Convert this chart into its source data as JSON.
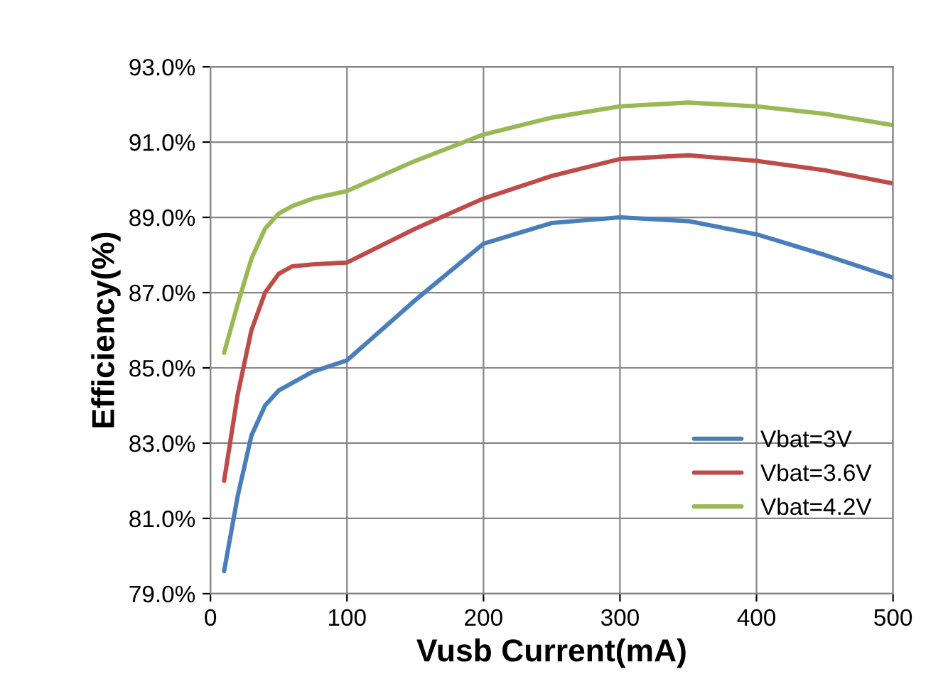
{
  "chart_data": {
    "type": "line",
    "xlabel": "Vusb Current(mA)",
    "ylabel": "Efficiency(%)",
    "x": [
      10,
      20,
      30,
      40,
      50,
      60,
      75,
      100,
      150,
      200,
      250,
      300,
      350,
      400,
      450,
      500
    ],
    "series": [
      {
        "name": "Vbat=3V",
        "color": "#4a7ebb",
        "values": [
          79.6,
          81.6,
          83.2,
          84.0,
          84.4,
          84.6,
          84.9,
          85.2,
          86.8,
          88.3,
          88.85,
          89.0,
          88.9,
          88.55,
          88.0,
          87.4
        ]
      },
      {
        "name": "Vbat=3.6V",
        "color": "#be4b48",
        "values": [
          82.0,
          84.3,
          86.0,
          87.0,
          87.5,
          87.7,
          87.75,
          87.8,
          88.7,
          89.5,
          90.1,
          90.55,
          90.65,
          90.5,
          90.25,
          89.9
        ]
      },
      {
        "name": "Vbat=4.2V",
        "color": "#98b954",
        "values": [
          85.4,
          86.7,
          87.9,
          88.7,
          89.1,
          89.3,
          89.5,
          89.7,
          90.5,
          91.2,
          91.65,
          91.95,
          92.05,
          91.95,
          91.75,
          91.45
        ]
      }
    ],
    "xlim": [
      0,
      500
    ],
    "xticks": [
      0,
      100,
      200,
      300,
      400,
      500
    ],
    "ylim": [
      79,
      93
    ],
    "yticks": [
      {
        "value": 79,
        "label": "79.0%"
      },
      {
        "value": 81,
        "label": "81.0%"
      },
      {
        "value": 83,
        "label": "83.0%"
      },
      {
        "value": 85,
        "label": "85.0%"
      },
      {
        "value": 87,
        "label": "87.0%"
      },
      {
        "value": 89,
        "label": "89.0%"
      },
      {
        "value": 91,
        "label": "91.0%"
      },
      {
        "value": 93,
        "label": "93.0%"
      }
    ],
    "grid": true,
    "legend": "lower right",
    "marker": "none",
    "line_style": "solid"
  }
}
